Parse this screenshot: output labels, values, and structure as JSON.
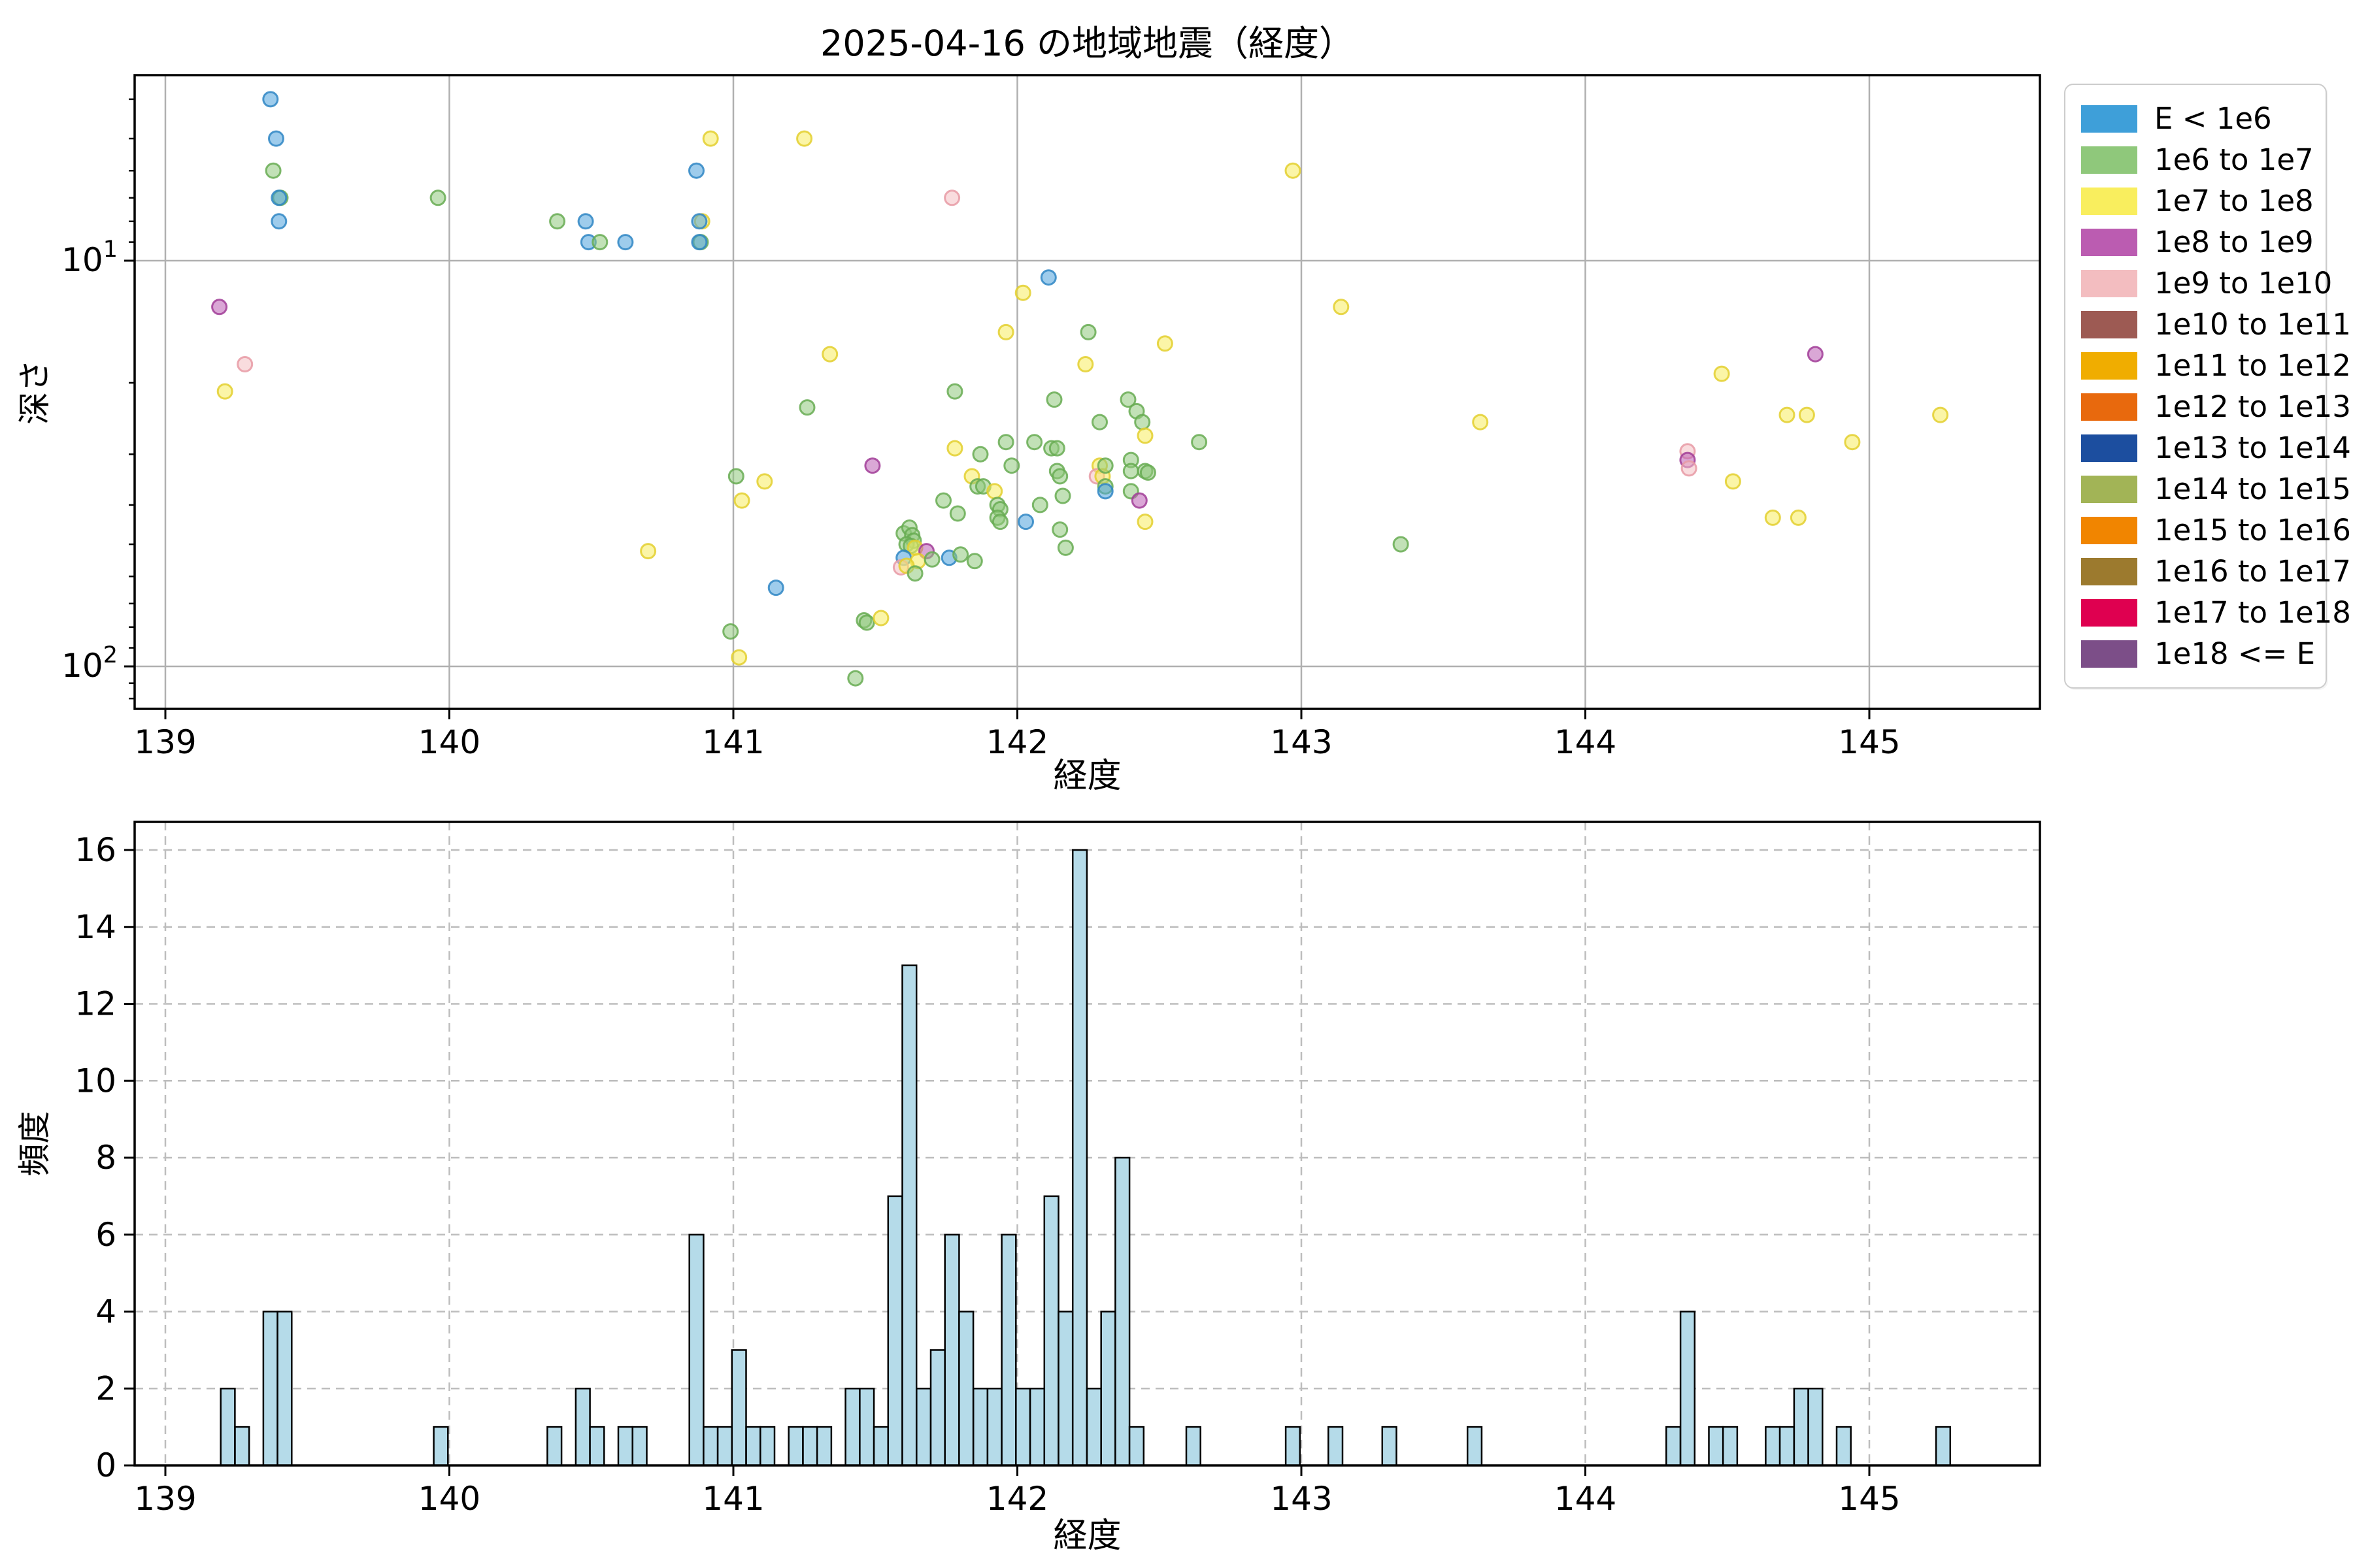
{
  "title": "2025-04-16 の地域地震（経度）",
  "legend": {
    "entries": [
      {
        "label": "E < 1e6",
        "color": "#3E9FD9"
      },
      {
        "label": "1e6 to 1e7",
        "color": "#8FC87B"
      },
      {
        "label": "1e7 to 1e8",
        "color": "#F9EE5E"
      },
      {
        "label": "1e8 to 1e9",
        "color": "#BB5CB1"
      },
      {
        "label": "1e9 to 1e10",
        "color": "#F3BDC0"
      },
      {
        "label": "1e10 to 1e11",
        "color": "#9D5A53"
      },
      {
        "label": "1e11 to 1e12",
        "color": "#F0AD00"
      },
      {
        "label": "1e12 to 1e13",
        "color": "#E8690D"
      },
      {
        "label": "1e13 to 1e14",
        "color": "#1C4E9F"
      },
      {
        "label": "1e14 to 1e15",
        "color": "#A2B456"
      },
      {
        "label": "1e15 to 1e16",
        "color": "#F18500"
      },
      {
        "label": "1e16 to 1e17",
        "color": "#9C7A2E"
      },
      {
        "label": "1e17 to 1e18",
        "color": "#DF0050"
      },
      {
        "label": "1e18 <= E",
        "color": "#7C4E88"
      }
    ]
  },
  "chart_data": [
    {
      "type": "scatter",
      "title": "2025-04-16 の地域地震（経度）",
      "xlabel": "経度",
      "ylabel": "深さ",
      "x_ticks": [
        139,
        140,
        141,
        142,
        143,
        144,
        145
      ],
      "xlim": [
        138.89,
        145.6
      ],
      "y_scale": "log-inverted",
      "ylim_depth": [
        3.5,
        127
      ],
      "y_major_ticks": [
        {
          "value": 10,
          "base": "10",
          "exp": "1"
        },
        {
          "value": 100,
          "base": "10",
          "exp": "2"
        }
      ],
      "y_minor_ticks": [
        4,
        5,
        6,
        7,
        8,
        9,
        20,
        30,
        40,
        50,
        60,
        70,
        80,
        90,
        110,
        120
      ],
      "grid": "solid-major",
      "category_colors": {
        "b": {
          "name": "E < 1e6",
          "fill": "#4FA3DC",
          "edge": "#2F86C4"
        },
        "g": {
          "name": "1e6 to 1e7",
          "fill": "#8FC97C",
          "edge": "#67AC52"
        },
        "y": {
          "name": "1e7 to 1e8",
          "fill": "#F7EC5F",
          "edge": "#E3CF2E"
        },
        "p": {
          "name": "1e8 to 1e9",
          "fill": "#BC5FB4",
          "edge": "#A13D98"
        },
        "k": {
          "name": "1e9 to 1e10",
          "fill": "#F4BFC3",
          "edge": "#E89AA4"
        }
      },
      "points": [
        {
          "x": 139.37,
          "d": 4,
          "c": "b"
        },
        {
          "x": 139.39,
          "d": 5,
          "c": "b"
        },
        {
          "x": 139.38,
          "d": 6,
          "c": "g"
        },
        {
          "x": 139.405,
          "d": 7,
          "c": "g"
        },
        {
          "x": 139.4,
          "d": 7,
          "c": "b"
        },
        {
          "x": 139.4,
          "d": 8,
          "c": "b"
        },
        {
          "x": 139.96,
          "d": 7,
          "c": "g"
        },
        {
          "x": 140.38,
          "d": 8,
          "c": "g"
        },
        {
          "x": 140.48,
          "d": 8,
          "c": "b"
        },
        {
          "x": 140.49,
          "d": 9,
          "c": "b"
        },
        {
          "x": 140.53,
          "d": 9,
          "c": "g"
        },
        {
          "x": 139.19,
          "d": 13,
          "c": "p"
        },
        {
          "x": 139.28,
          "d": 18,
          "c": "k"
        },
        {
          "x": 139.21,
          "d": 21,
          "c": "y"
        },
        {
          "x": 140.92,
          "d": 5,
          "c": "y"
        },
        {
          "x": 141.25,
          "d": 5,
          "c": "y"
        },
        {
          "x": 140.87,
          "d": 6,
          "c": "b"
        },
        {
          "x": 141.77,
          "d": 7,
          "c": "k"
        },
        {
          "x": 140.89,
          "d": 8,
          "c": "y"
        },
        {
          "x": 140.88,
          "d": 8,
          "c": "b"
        },
        {
          "x": 140.62,
          "d": 9,
          "c": "b"
        },
        {
          "x": 140.885,
          "d": 9,
          "c": "g"
        },
        {
          "x": 140.88,
          "d": 9,
          "c": "b"
        },
        {
          "x": 142.11,
          "d": 11,
          "c": "b"
        },
        {
          "x": 142.02,
          "d": 12,
          "c": "y"
        },
        {
          "x": 141.96,
          "d": 15,
          "c": "y"
        },
        {
          "x": 142.25,
          "d": 15,
          "c": "g"
        },
        {
          "x": 141.34,
          "d": 17,
          "c": "y"
        },
        {
          "x": 142.24,
          "d": 18,
          "c": "y"
        },
        {
          "x": 141.78,
          "d": 21,
          "c": "g"
        },
        {
          "x": 142.13,
          "d": 22,
          "c": "g"
        },
        {
          "x": 141.26,
          "d": 23,
          "c": "g"
        },
        {
          "x": 142.97,
          "d": 6,
          "c": "y"
        },
        {
          "x": 143.14,
          "d": 13,
          "c": "y"
        },
        {
          "x": 142.52,
          "d": 16,
          "c": "y"
        },
        {
          "x": 142.39,
          "d": 22,
          "c": "g"
        },
        {
          "x": 142.42,
          "d": 23.5,
          "c": "g"
        },
        {
          "x": 142.44,
          "d": 25,
          "c": "g"
        },
        {
          "x": 144.81,
          "d": 17,
          "c": "p"
        },
        {
          "x": 144.48,
          "d": 19,
          "c": "y"
        },
        {
          "x": 144.71,
          "d": 24,
          "c": "y"
        },
        {
          "x": 144.78,
          "d": 24,
          "c": "y"
        },
        {
          "x": 145.25,
          "d": 24,
          "c": "y"
        },
        {
          "x": 144.94,
          "d": 28,
          "c": "y"
        },
        {
          "x": 144.36,
          "d": 29.5,
          "c": "k"
        },
        {
          "x": 144.36,
          "d": 31,
          "c": "p"
        },
        {
          "x": 144.365,
          "d": 32.5,
          "c": "k"
        },
        {
          "x": 144.52,
          "d": 35,
          "c": "y"
        },
        {
          "x": 144.66,
          "d": 43,
          "c": "y"
        },
        {
          "x": 144.75,
          "d": 43,
          "c": "y"
        },
        {
          "x": 142.29,
          "d": 25,
          "c": "g"
        },
        {
          "x": 142.45,
          "d": 27,
          "c": "y"
        },
        {
          "x": 142.64,
          "d": 28,
          "c": "g"
        },
        {
          "x": 142.29,
          "d": 32,
          "c": "y"
        },
        {
          "x": 142.28,
          "d": 34,
          "c": "k"
        },
        {
          "x": 142.3,
          "d": 34,
          "c": "y"
        },
        {
          "x": 142.31,
          "d": 32,
          "c": "g"
        },
        {
          "x": 142.4,
          "d": 31,
          "c": "g"
        },
        {
          "x": 142.4,
          "d": 33,
          "c": "g"
        },
        {
          "x": 142.45,
          "d": 33,
          "c": "g"
        },
        {
          "x": 142.46,
          "d": 33.3,
          "c": "g"
        },
        {
          "x": 142.31,
          "d": 36,
          "c": "g"
        },
        {
          "x": 142.31,
          "d": 37,
          "c": "b"
        },
        {
          "x": 142.4,
          "d": 37,
          "c": "g"
        },
        {
          "x": 142.43,
          "d": 39,
          "c": "p"
        },
        {
          "x": 142.45,
          "d": 44,
          "c": "y"
        },
        {
          "x": 143.35,
          "d": 50,
          "c": "g"
        },
        {
          "x": 143.63,
          "d": 25,
          "c": "y"
        },
        {
          "x": 141.78,
          "d": 29,
          "c": "y"
        },
        {
          "x": 141.49,
          "d": 32,
          "c": "p"
        },
        {
          "x": 141.01,
          "d": 34,
          "c": "g"
        },
        {
          "x": 141.11,
          "d": 35,
          "c": "y"
        },
        {
          "x": 141.03,
          "d": 39,
          "c": "y"
        },
        {
          "x": 141.87,
          "d": 30,
          "c": "g"
        },
        {
          "x": 141.84,
          "d": 34,
          "c": "y"
        },
        {
          "x": 141.86,
          "d": 36,
          "c": "g"
        },
        {
          "x": 141.88,
          "d": 36,
          "c": "g"
        },
        {
          "x": 141.92,
          "d": 37,
          "c": "y"
        },
        {
          "x": 141.96,
          "d": 28,
          "c": "g"
        },
        {
          "x": 142.06,
          "d": 28,
          "c": "g"
        },
        {
          "x": 142.12,
          "d": 29,
          "c": "g"
        },
        {
          "x": 142.14,
          "d": 29,
          "c": "g"
        },
        {
          "x": 141.98,
          "d": 32,
          "c": "g"
        },
        {
          "x": 142.14,
          "d": 33,
          "c": "g"
        },
        {
          "x": 142.15,
          "d": 34,
          "c": "g"
        },
        {
          "x": 142.16,
          "d": 38,
          "c": "g"
        },
        {
          "x": 142.08,
          "d": 40,
          "c": "g"
        },
        {
          "x": 141.74,
          "d": 39,
          "c": "g"
        },
        {
          "x": 141.79,
          "d": 42,
          "c": "g"
        },
        {
          "x": 141.93,
          "d": 40,
          "c": "g"
        },
        {
          "x": 141.94,
          "d": 41,
          "c": "g"
        },
        {
          "x": 141.93,
          "d": 43,
          "c": "g"
        },
        {
          "x": 141.94,
          "d": 44,
          "c": "g"
        },
        {
          "x": 142.03,
          "d": 44,
          "c": "b"
        },
        {
          "x": 142.15,
          "d": 46,
          "c": "g"
        },
        {
          "x": 142.17,
          "d": 51,
          "c": "g"
        },
        {
          "x": 141.6,
          "d": 47,
          "c": "g"
        },
        {
          "x": 141.62,
          "d": 45.5,
          "c": "g"
        },
        {
          "x": 141.63,
          "d": 47.5,
          "c": "g"
        },
        {
          "x": 141.635,
          "d": 49,
          "c": "g"
        },
        {
          "x": 141.61,
          "d": 50,
          "c": "g"
        },
        {
          "x": 141.625,
          "d": 50.5,
          "c": "g"
        },
        {
          "x": 141.64,
          "d": 51,
          "c": "y"
        },
        {
          "x": 141.68,
          "d": 52,
          "c": "p"
        },
        {
          "x": 141.6,
          "d": 54,
          "c": "b"
        },
        {
          "x": 141.65,
          "d": 55,
          "c": "y"
        },
        {
          "x": 141.59,
          "d": 57,
          "c": "k"
        },
        {
          "x": 141.61,
          "d": 56.5,
          "c": "y"
        },
        {
          "x": 141.7,
          "d": 54.5,
          "c": "g"
        },
        {
          "x": 141.76,
          "d": 54,
          "c": "b"
        },
        {
          "x": 141.8,
          "d": 53,
          "c": "g"
        },
        {
          "x": 141.85,
          "d": 55,
          "c": "g"
        },
        {
          "x": 141.64,
          "d": 59,
          "c": "g"
        },
        {
          "x": 140.7,
          "d": 52,
          "c": "y"
        },
        {
          "x": 141.15,
          "d": 64,
          "c": "b"
        },
        {
          "x": 141.46,
          "d": 77,
          "c": "g"
        },
        {
          "x": 141.47,
          "d": 78,
          "c": "g"
        },
        {
          "x": 141.52,
          "d": 76,
          "c": "y"
        },
        {
          "x": 140.99,
          "d": 82,
          "c": "g"
        },
        {
          "x": 141.02,
          "d": 95,
          "c": "y"
        },
        {
          "x": 141.43,
          "d": 107,
          "c": "g"
        }
      ]
    },
    {
      "type": "bar",
      "xlabel": "経度",
      "ylabel": "頻度",
      "x_ticks": [
        139,
        140,
        141,
        142,
        143,
        144,
        145
      ],
      "y_ticks": [
        0,
        2,
        4,
        6,
        8,
        10,
        12,
        14,
        16
      ],
      "xlim": [
        138.89,
        145.6
      ],
      "ylim": [
        0,
        16.8
      ],
      "grid": "dashed",
      "bar_fill": "#B5DBE9",
      "bar_edge": "#000000",
      "bin_width": 0.05,
      "bars": [
        {
          "x": 139.22,
          "v": 2
        },
        {
          "x": 139.27,
          "v": 1
        },
        {
          "x": 139.37,
          "v": 4
        },
        {
          "x": 139.42,
          "v": 4
        },
        {
          "x": 139.97,
          "v": 1
        },
        {
          "x": 140.37,
          "v": 1
        },
        {
          "x": 140.47,
          "v": 2
        },
        {
          "x": 140.52,
          "v": 1
        },
        {
          "x": 140.62,
          "v": 1
        },
        {
          "x": 140.67,
          "v": 1
        },
        {
          "x": 140.87,
          "v": 6
        },
        {
          "x": 140.92,
          "v": 1
        },
        {
          "x": 140.97,
          "v": 1
        },
        {
          "x": 141.02,
          "v": 3
        },
        {
          "x": 141.07,
          "v": 1
        },
        {
          "x": 141.12,
          "v": 1
        },
        {
          "x": 141.22,
          "v": 1
        },
        {
          "x": 141.27,
          "v": 1
        },
        {
          "x": 141.32,
          "v": 1
        },
        {
          "x": 141.42,
          "v": 2
        },
        {
          "x": 141.47,
          "v": 2
        },
        {
          "x": 141.52,
          "v": 1
        },
        {
          "x": 141.57,
          "v": 7
        },
        {
          "x": 141.62,
          "v": 13
        },
        {
          "x": 141.67,
          "v": 2
        },
        {
          "x": 141.72,
          "v": 3
        },
        {
          "x": 141.77,
          "v": 6
        },
        {
          "x": 141.82,
          "v": 4
        },
        {
          "x": 141.87,
          "v": 2
        },
        {
          "x": 141.92,
          "v": 2
        },
        {
          "x": 141.97,
          "v": 6
        },
        {
          "x": 142.02,
          "v": 2
        },
        {
          "x": 142.07,
          "v": 2
        },
        {
          "x": 142.12,
          "v": 7
        },
        {
          "x": 142.17,
          "v": 4
        },
        {
          "x": 142.22,
          "v": 16
        },
        {
          "x": 142.27,
          "v": 2
        },
        {
          "x": 142.32,
          "v": 4
        },
        {
          "x": 142.37,
          "v": 8
        },
        {
          "x": 142.42,
          "v": 1
        },
        {
          "x": 142.62,
          "v": 1
        },
        {
          "x": 142.97,
          "v": 1
        },
        {
          "x": 143.12,
          "v": 1
        },
        {
          "x": 143.31,
          "v": 1
        },
        {
          "x": 143.61,
          "v": 1
        },
        {
          "x": 144.31,
          "v": 1
        },
        {
          "x": 144.36,
          "v": 4
        },
        {
          "x": 144.46,
          "v": 1
        },
        {
          "x": 144.51,
          "v": 1
        },
        {
          "x": 144.66,
          "v": 1
        },
        {
          "x": 144.71,
          "v": 1
        },
        {
          "x": 144.76,
          "v": 2
        },
        {
          "x": 144.81,
          "v": 2
        },
        {
          "x": 144.91,
          "v": 1
        },
        {
          "x": 145.26,
          "v": 1
        }
      ]
    }
  ]
}
